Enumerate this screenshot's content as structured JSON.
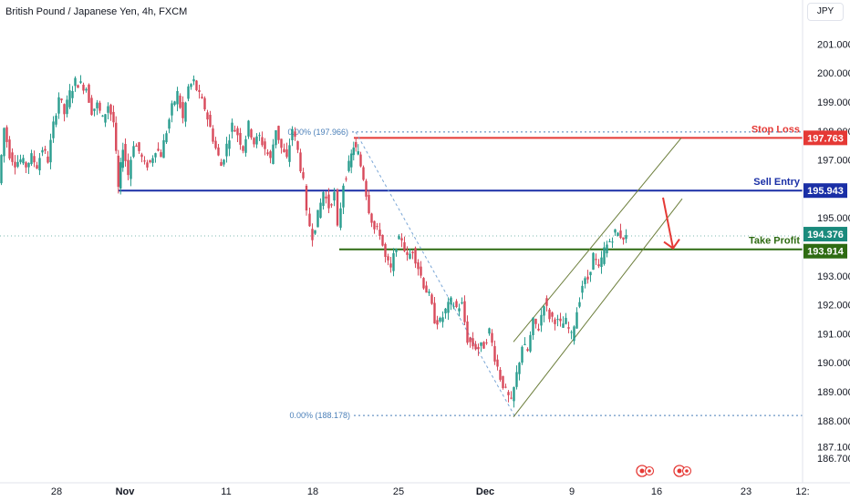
{
  "header": {
    "title": "British Pound / Japanese Yen, 4h, FXCM",
    "currency_button": "JPY"
  },
  "colors": {
    "stop_loss": "#e53935",
    "sell_entry": "#1a2fa6",
    "take_profit": "#2e6b12",
    "current_price": "#1a8a7c",
    "candle_up": "#2a9d8f",
    "candle_down": "#d84a5b",
    "channel": "#6b7d3a",
    "arrow": "#e53935",
    "fib": "#4a7fb8"
  },
  "chart_data": {
    "type": "candlestick",
    "title": "British Pound / Japanese Yen, 4h, FXCM",
    "ylim": [
      186.7,
      201.7
    ],
    "y_ticks": [
      "201.000",
      "200.000",
      "199.000",
      "198.000",
      "197.000",
      "195.000",
      "193.000",
      "192.000",
      "191.000",
      "190.000",
      "189.000",
      "188.000",
      "187.100",
      "186.700"
    ],
    "x_ticks": [
      "28",
      "Nov",
      "11",
      "18",
      "25",
      "Dec",
      "9",
      "16",
      "23",
      "12:"
    ],
    "grid": false,
    "levels": [
      {
        "name": "Stop Loss",
        "value": "197.763",
        "price": 197.763
      },
      {
        "name": "Sell Entry",
        "value": "195.943",
        "price": 195.943
      },
      {
        "name": "Take Profit",
        "value": "193.914",
        "price": 193.914
      }
    ],
    "current_price": {
      "value": "194.376",
      "price": 194.376
    },
    "fib_levels": [
      {
        "label": "0.00% (197.966)",
        "price": 197.966
      },
      {
        "label": "0.00% (188.178)",
        "price": 188.178
      }
    ],
    "price_path": [
      [
        0,
        196.2
      ],
      [
        6,
        198.1
      ],
      [
        12,
        197.2
      ],
      [
        18,
        196.9
      ],
      [
        24,
        197.0
      ],
      [
        30,
        196.8
      ],
      [
        36,
        197.1
      ],
      [
        42,
        196.8
      ],
      [
        48,
        197.4
      ],
      [
        54,
        197.0
      ],
      [
        60,
        198.2
      ],
      [
        66,
        199.2
      ],
      [
        72,
        198.6
      ],
      [
        78,
        199.3
      ],
      [
        84,
        199.7
      ],
      [
        90,
        199.6
      ],
      [
        96,
        199.5
      ],
      [
        102,
        198.7
      ],
      [
        108,
        198.9
      ],
      [
        114,
        198.4
      ],
      [
        120,
        198.9
      ],
      [
        126,
        198.3
      ],
      [
        131,
        196.0
      ],
      [
        136,
        197.5
      ],
      [
        142,
        196.5
      ],
      [
        148,
        197.6
      ],
      [
        154,
        197.3
      ],
      [
        160,
        196.8
      ],
      [
        166,
        196.9
      ],
      [
        172,
        197.4
      ],
      [
        178,
        197.2
      ],
      [
        184,
        198.0
      ],
      [
        190,
        198.8
      ],
      [
        196,
        199.3
      ],
      [
        202,
        198.4
      ],
      [
        208,
        199.5
      ],
      [
        214,
        199.7
      ],
      [
        220,
        199.2
      ],
      [
        226,
        198.8
      ],
      [
        232,
        198.1
      ],
      [
        238,
        197.4
      ],
      [
        244,
        196.8
      ],
      [
        250,
        197.5
      ],
      [
        256,
        198.2
      ],
      [
        262,
        197.9
      ],
      [
        268,
        197.4
      ],
      [
        274,
        198.2
      ],
      [
        280,
        197.6
      ],
      [
        286,
        197.8
      ],
      [
        292,
        197.4
      ],
      [
        298,
        197.0
      ],
      [
        304,
        198.1
      ],
      [
        310,
        197.4
      ],
      [
        316,
        197.0
      ],
      [
        322,
        198.1
      ],
      [
        328,
        197.3
      ],
      [
        334,
        196.2
      ],
      [
        338,
        195.1
      ],
      [
        344,
        194.4
      ],
      [
        350,
        195.1
      ],
      [
        356,
        195.9
      ],
      [
        362,
        195.4
      ],
      [
        368,
        195.8
      ],
      [
        372,
        194.6
      ],
      [
        378,
        196.2
      ],
      [
        384,
        196.8
      ],
      [
        389,
        197.5
      ],
      [
        394,
        197.2
      ],
      [
        400,
        196.4
      ],
      [
        406,
        195.3
      ],
      [
        412,
        194.6
      ],
      [
        418,
        194.5
      ],
      [
        424,
        193.6
      ],
      [
        430,
        193.2
      ],
      [
        436,
        194.1
      ],
      [
        442,
        194.3
      ],
      [
        448,
        193.6
      ],
      [
        454,
        193.9
      ],
      [
        460,
        193.3
      ],
      [
        466,
        192.7
      ],
      [
        472,
        192.3
      ],
      [
        478,
        191.5
      ],
      [
        484,
        191.4
      ],
      [
        490,
        191.8
      ],
      [
        496,
        192.1
      ],
      [
        502,
        191.9
      ],
      [
        508,
        192.0
      ],
      [
        514,
        190.8
      ],
      [
        520,
        190.6
      ],
      [
        526,
        190.5
      ],
      [
        532,
        190.6
      ],
      [
        538,
        191.1
      ],
      [
        544,
        190.2
      ],
      [
        550,
        189.5
      ],
      [
        556,
        189.0
      ],
      [
        562,
        188.6
      ],
      [
        568,
        189.6
      ],
      [
        574,
        190.6
      ],
      [
        580,
        190.4
      ],
      [
        586,
        191.4
      ],
      [
        592,
        191.2
      ],
      [
        598,
        192.1
      ],
      [
        604,
        191.6
      ],
      [
        610,
        191.5
      ],
      [
        616,
        191.3
      ],
      [
        622,
        191.4
      ],
      [
        628,
        190.9
      ],
      [
        634,
        191.8
      ],
      [
        640,
        192.7
      ],
      [
        646,
        192.9
      ],
      [
        652,
        193.7
      ],
      [
        658,
        193.2
      ],
      [
        664,
        193.9
      ],
      [
        670,
        194.2
      ],
      [
        676,
        194.5
      ],
      [
        682,
        194.4
      ],
      [
        688,
        194.3
      ]
    ]
  },
  "annotations": {
    "stop_loss_label": "Stop Loss",
    "sell_entry_label": "Sell Entry",
    "take_profit_label": "Take Profit",
    "fib_top_label": "0.00% (197.966)",
    "fib_bottom_label": "0.00% (188.178)"
  }
}
